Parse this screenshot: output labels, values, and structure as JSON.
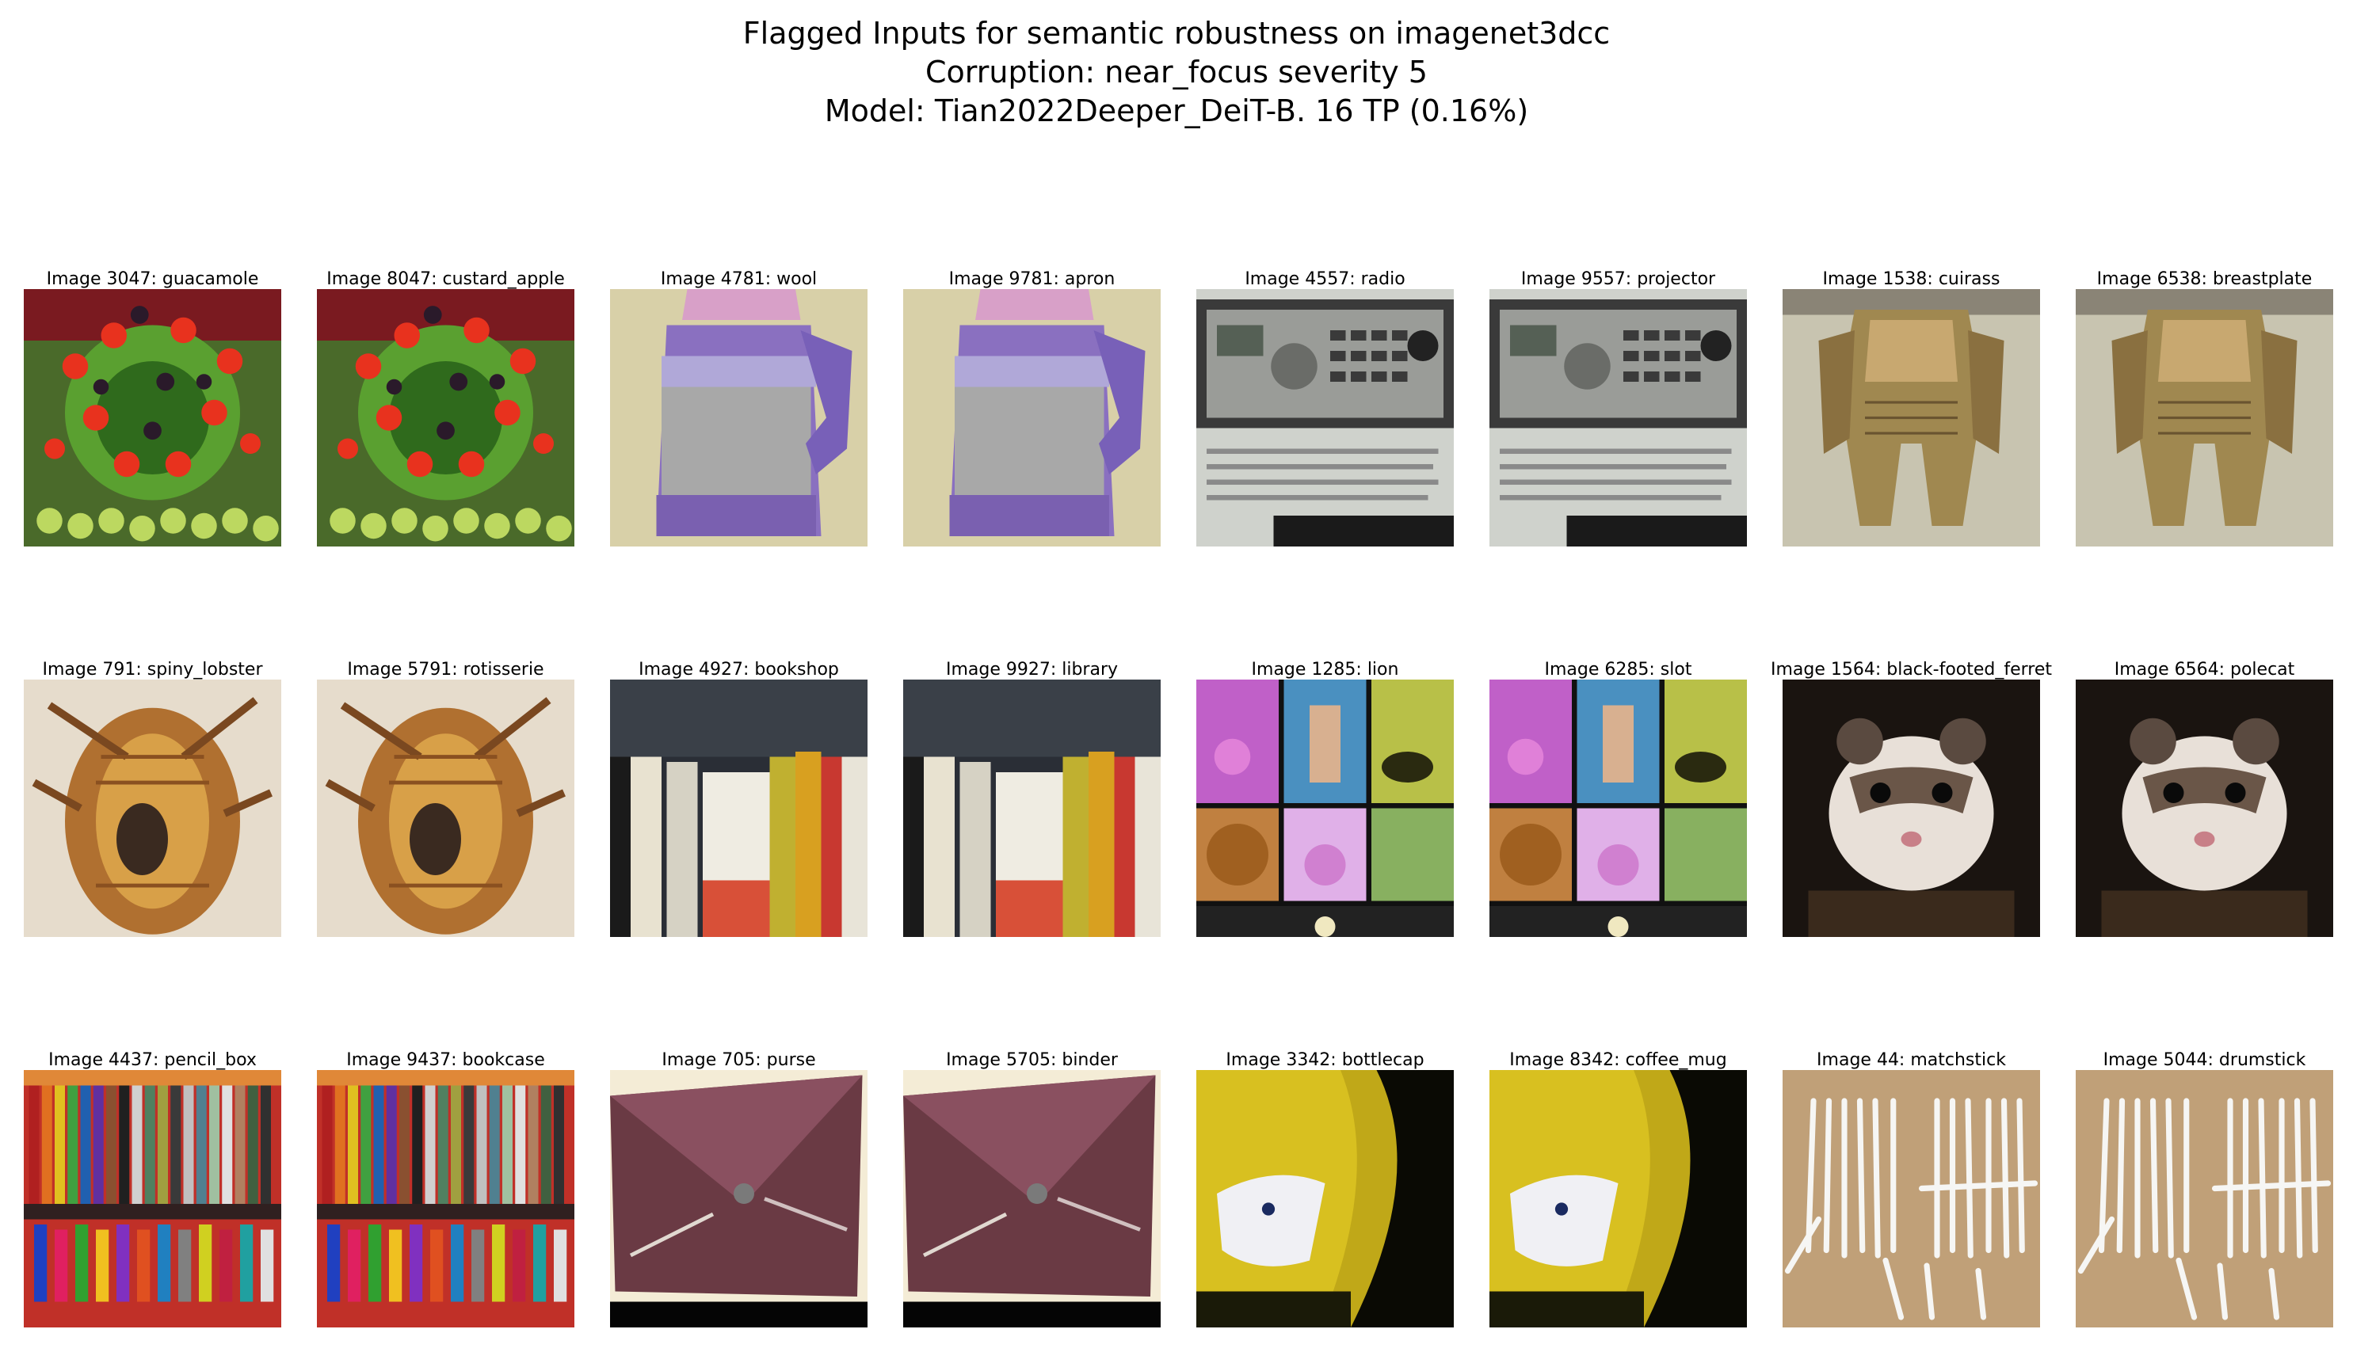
{
  "title": {
    "line1": "Flagged Inputs for semantic robustness on imagenet3dcc",
    "line2": "Corruption: near_focus severity 5",
    "line3": "Model: Tian2022Deeper_DeiT-B. 16 TP (0.16%)"
  },
  "rows": [
    [
      {
        "label": "Image 3047: guacamole",
        "scene": "fruit"
      },
      {
        "label": "Image 8047: custard_apple",
        "scene": "fruit"
      },
      {
        "label": "Image 4781: wool",
        "scene": "sweater"
      },
      {
        "label": "Image 9781: apron",
        "scene": "sweater"
      },
      {
        "label": "Image 4557: radio",
        "scene": "radio"
      },
      {
        "label": "Image 9557: projector",
        "scene": "radio"
      },
      {
        "label": "Image 1538: cuirass",
        "scene": "armor"
      },
      {
        "label": "Image 6538: breastplate",
        "scene": "armor"
      }
    ],
    [
      {
        "label": "Image 791: spiny_lobster",
        "scene": "lobster"
      },
      {
        "label": "Image 5791: rotisserie",
        "scene": "lobster"
      },
      {
        "label": "Image 4927: bookshop",
        "scene": "books"
      },
      {
        "label": "Image 9927: library",
        "scene": "books"
      },
      {
        "label": "Image 1285: lion",
        "scene": "collage"
      },
      {
        "label": "Image 6285: slot",
        "scene": "collage"
      },
      {
        "label": "Image 1564: black-footed_ferret",
        "scene": "ferret"
      },
      {
        "label": "Image 6564: polecat",
        "scene": "ferret"
      }
    ],
    [
      {
        "label": "Image 4437: pencil_box",
        "scene": "pencils"
      },
      {
        "label": "Image 9437: bookcase",
        "scene": "pencils"
      },
      {
        "label": "Image 705: purse",
        "scene": "purse"
      },
      {
        "label": "Image 5705: binder",
        "scene": "purse"
      },
      {
        "label": "Image 3342: bottlecap",
        "scene": "bottlecap"
      },
      {
        "label": "Image 8342: coffee_mug",
        "scene": "bottlecap"
      },
      {
        "label": "Image 44: matchstick",
        "scene": "matches"
      },
      {
        "label": "Image 5044: drumstick",
        "scene": "matches"
      }
    ]
  ]
}
